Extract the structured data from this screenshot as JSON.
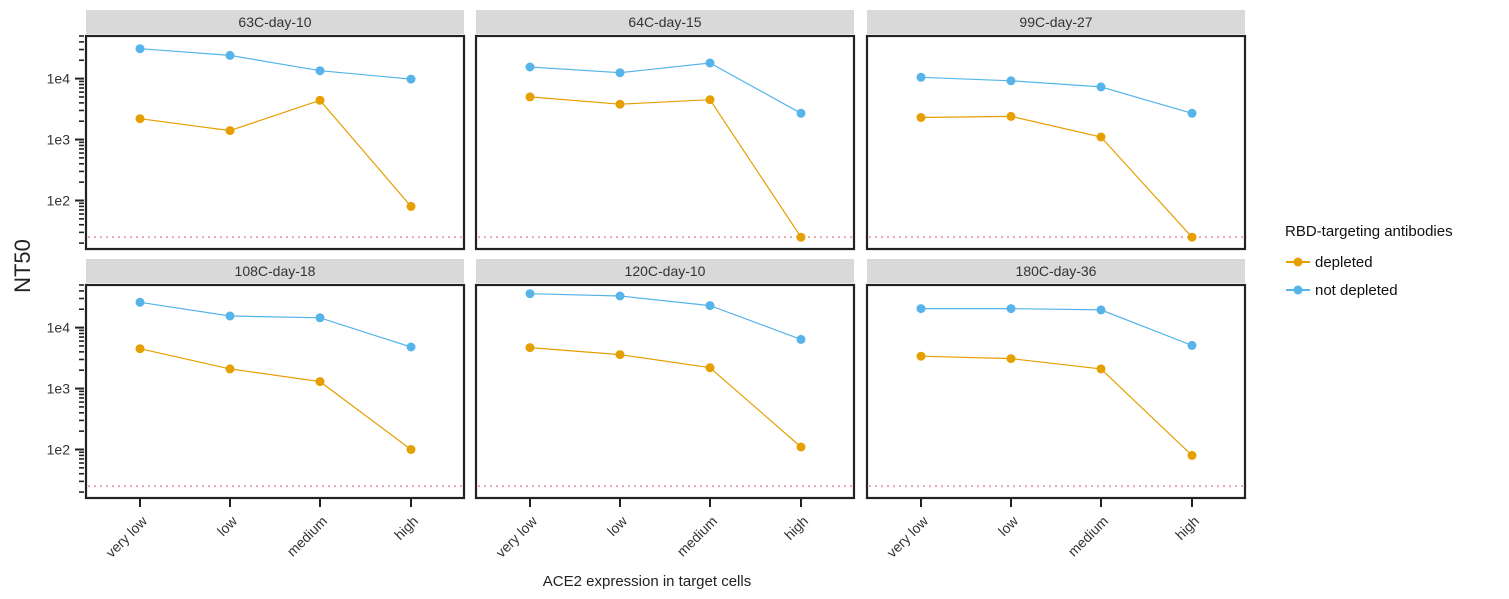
{
  "chart_data": {
    "type": "line",
    "facet_layout": "2x3",
    "y_scale": "log10",
    "ylim": [
      16,
      50000
    ],
    "ylabel": "NT50",
    "xlabel": "ACE2 expression in target cells",
    "categories": [
      "very low",
      "low",
      "medium",
      "high"
    ],
    "y_ticks": [
      100,
      1000,
      10000
    ],
    "y_tick_labels": [
      "1e2",
      "1e3",
      "1e4"
    ],
    "reference_line": {
      "y": 25,
      "style": "dotted",
      "color": "#E8A9B4"
    },
    "legend": {
      "title": "RBD-targeting antibodies",
      "placement": "right",
      "entries": [
        {
          "label": "depleted",
          "color": "#E69F00"
        },
        {
          "label": "not depleted",
          "color": "#56B4E9"
        }
      ]
    },
    "panels": [
      {
        "title": "63C-day-10",
        "series": [
          {
            "name": "depleted",
            "values": [
              2200,
              1400,
              4400,
              80
            ]
          },
          {
            "name": "not depleted",
            "values": [
              31000,
              24000,
              13500,
              9800
            ]
          }
        ]
      },
      {
        "title": "64C-day-15",
        "series": [
          {
            "name": "depleted",
            "values": [
              5000,
              3800,
              4500,
              25
            ]
          },
          {
            "name": "not depleted",
            "values": [
              15500,
              12500,
              18000,
              2700
            ]
          }
        ]
      },
      {
        "title": "99C-day-27",
        "series": [
          {
            "name": "depleted",
            "values": [
              2300,
              2400,
              1100,
              25
            ]
          },
          {
            "name": "not depleted",
            "values": [
              10500,
              9200,
              7300,
              2700
            ]
          }
        ]
      },
      {
        "title": "108C-day-18",
        "series": [
          {
            "name": "depleted",
            "values": [
              4500,
              2100,
              1300,
              100
            ]
          },
          {
            "name": "not depleted",
            "values": [
              26000,
              15500,
              14500,
              4800
            ]
          }
        ]
      },
      {
        "title": "120C-day-10",
        "series": [
          {
            "name": "depleted",
            "values": [
              4700,
              3600,
              2200,
              110
            ]
          },
          {
            "name": "not depleted",
            "values": [
              36000,
              33000,
              23000,
              6400
            ]
          }
        ]
      },
      {
        "title": "180C-day-36",
        "series": [
          {
            "name": "depleted",
            "values": [
              3400,
              3100,
              2100,
              80
            ]
          },
          {
            "name": "not depleted",
            "values": [
              20500,
              20500,
              19500,
              5100
            ]
          }
        ]
      }
    ]
  }
}
